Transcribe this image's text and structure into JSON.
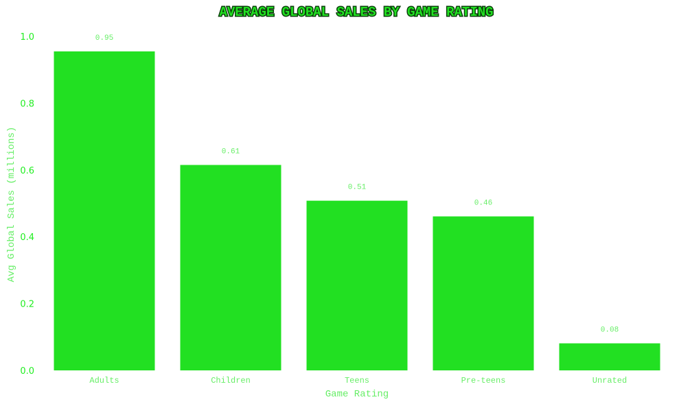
{
  "chart_data": {
    "type": "bar",
    "title": "AVERAGE GLOBAL SALES BY GAME RATING",
    "xlabel": "Game Rating",
    "ylabel": "Avg Global Sales (millions)",
    "categories": [
      "Adults",
      "Children",
      "Teens",
      "Pre-teens",
      "Unrated"
    ],
    "values": [
      0.955,
      0.615,
      0.508,
      0.461,
      0.081
    ],
    "data_labels": [
      "0.95",
      "0.61",
      "0.51",
      "0.46",
      "0.08"
    ],
    "ylim": [
      0,
      1.0
    ],
    "yticks": [
      0.0,
      0.2,
      0.4,
      0.6,
      0.8,
      1.0
    ],
    "ytick_labels": [
      "0.0",
      "0.2",
      "0.4",
      "0.6",
      "0.8",
      "1.0"
    ],
    "grid": false,
    "legend": "none",
    "colors": {
      "bar": "#22e022",
      "title_fill": "#22e022",
      "title_outline": "#0a3d0a",
      "axis_text": "#66ee66",
      "tick_text": "#22ee22",
      "data_label": "#66ee66"
    }
  }
}
